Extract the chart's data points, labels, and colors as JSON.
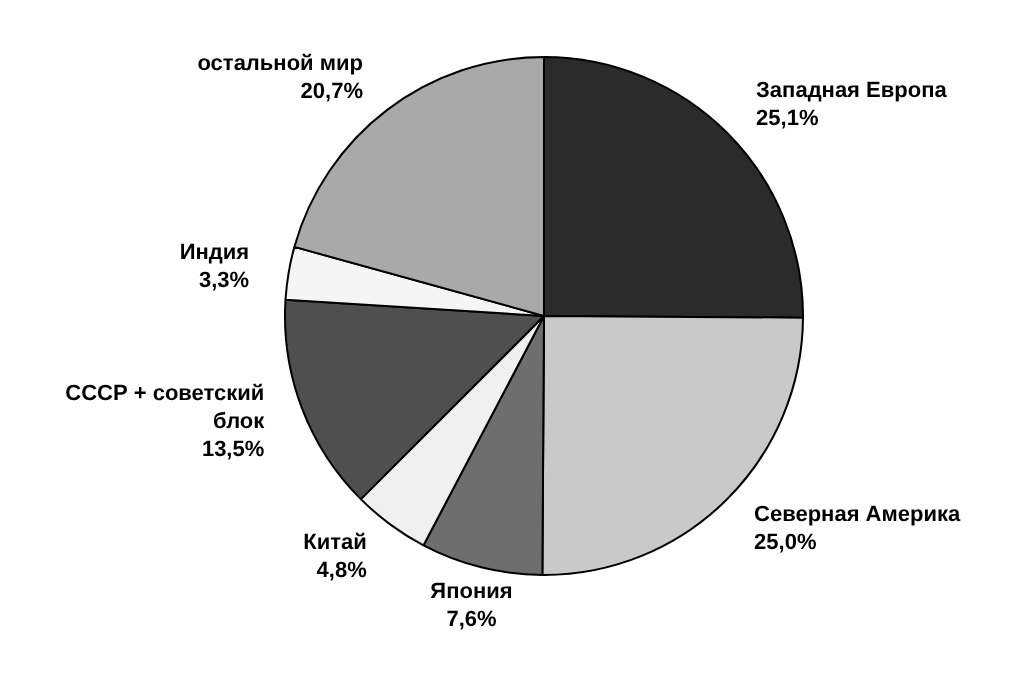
{
  "chart_data": {
    "type": "pie",
    "categories": [
      "Западная Европа",
      "Северная Америка",
      "Япония",
      "Китай",
      "СССР + советский блок",
      "Индия",
      "остальной мир"
    ],
    "values": [
      25.1,
      25.0,
      7.6,
      4.8,
      13.5,
      3.3,
      20.7
    ],
    "value_labels": [
      "25,1%",
      "25,0%",
      "7,6%",
      "4,8%",
      "13,5%",
      "3,3%",
      "20,7%"
    ],
    "colors": [
      "#2b2b2b",
      "#c9c9c9",
      "#6e6e6e",
      "#f0f0f0",
      "#4f4f4f",
      "#f5f5f5",
      "#a9a9a9"
    ],
    "legend": false
  }
}
